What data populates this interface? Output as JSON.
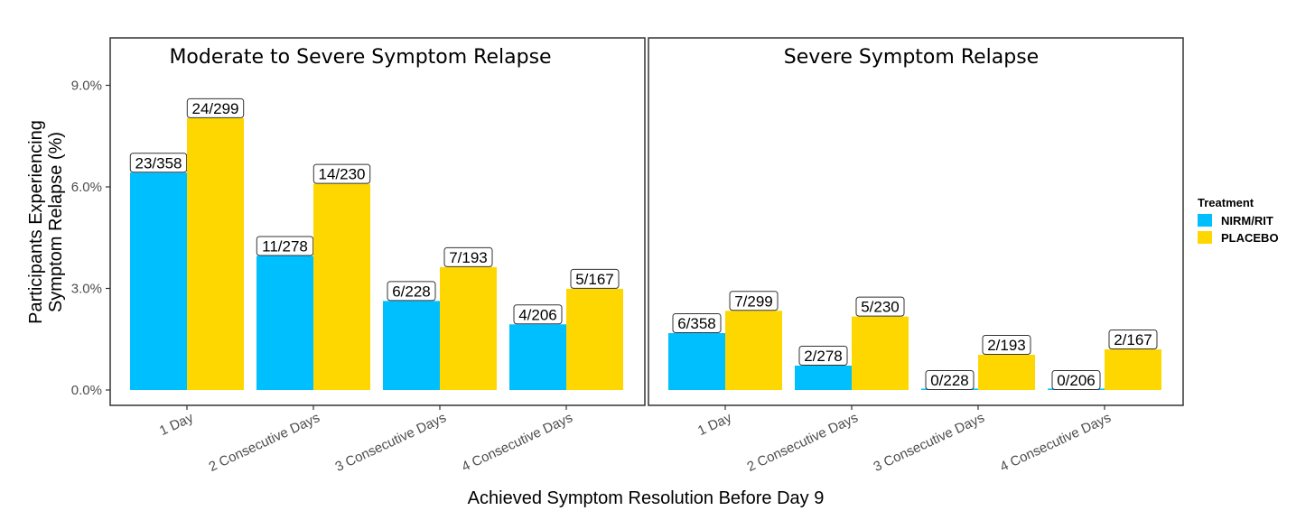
{
  "chart_data": {
    "type": "bar",
    "xlabel": "Achieved Symptom Resolution Before Day 9",
    "ylabel": [
      "Participants Experiencing",
      "Symptom Relapse (%)"
    ],
    "ylim": [
      0,
      9.6
    ],
    "yticks": [
      0,
      3,
      6,
      9
    ],
    "ytick_labels": [
      "0.0%",
      "3.0%",
      "6.0%",
      "9.0%"
    ],
    "grid": false,
    "legend": {
      "title": "Treatment",
      "placement": "right",
      "entries": [
        {
          "name": "NIRM/RIT",
          "color": "#00BFFF"
        },
        {
          "name": "PLACEBO",
          "color": "#FFD700"
        }
      ]
    },
    "categories": [
      "1 Day",
      "2 Consecutive Days",
      "3 Consecutive Days",
      "4 Consecutive Days"
    ],
    "panels": [
      {
        "title": "Moderate to Severe Symptom Relapse",
        "series": [
          {
            "name": "NIRM/RIT",
            "values": [
              6.42,
              3.96,
              2.63,
              1.94
            ],
            "labels": [
              "23/358",
              "11/278",
              "6/228",
              "4/206"
            ]
          },
          {
            "name": "PLACEBO",
            "values": [
              8.03,
              6.09,
              3.63,
              2.99
            ],
            "labels": [
              "24/299",
              "14/230",
              "7/193",
              "5/167"
            ]
          }
        ]
      },
      {
        "title": "Severe Symptom Relapse",
        "series": [
          {
            "name": "NIRM/RIT",
            "values": [
              1.68,
              0.72,
              0.0,
              0.0
            ],
            "labels": [
              "6/358",
              "2/278",
              "0/228",
              "0/206"
            ]
          },
          {
            "name": "PLACEBO",
            "values": [
              2.34,
              2.17,
              1.04,
              1.2
            ],
            "labels": [
              "7/299",
              "5/230",
              "2/193",
              "2/167"
            ]
          }
        ]
      }
    ]
  }
}
